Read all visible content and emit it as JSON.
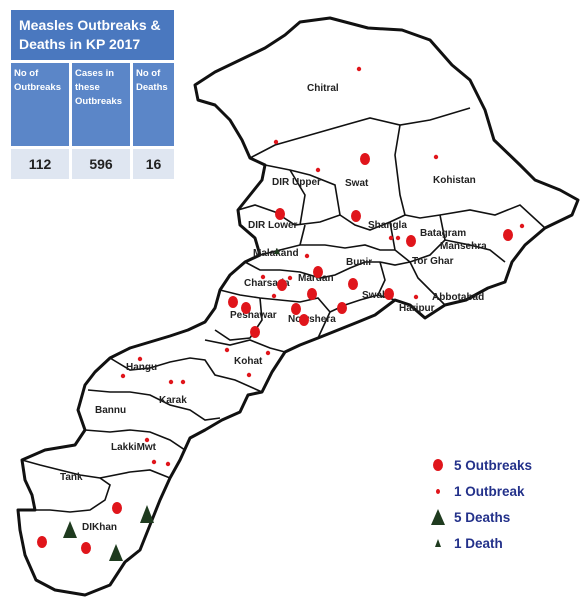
{
  "info_table": {
    "title": "Measles Outbreaks & Deaths in KP 2017",
    "columns": [
      {
        "header": "No of Outbreaks",
        "value": "112"
      },
      {
        "header": "Cases in these Outbreaks",
        "value": "596"
      },
      {
        "header": "No of Deaths",
        "value": "16"
      }
    ]
  },
  "districts": {
    "chitral": "Chitral",
    "dir_upper": "DIR Upper",
    "swat": "Swat",
    "kohistan": "Kohistan",
    "dir_lower": "DIR Lower",
    "shangla": "Shangla",
    "batagram": "Batagram",
    "mansehra": "Mansehra",
    "malakand": "Malakand",
    "buner": "Bunir",
    "tor_ghar": "Tor Ghar",
    "charsadda": "Charsada",
    "mardan": "Mardan",
    "swabi": "Swabi",
    "abbottabad": "Abbotabad",
    "haripur": "Haripur",
    "peshawar": "Peshawar",
    "nowshera": "Nowshera",
    "kohat": "Kohat",
    "hangu": "Hangu",
    "karak": "Karak",
    "bannu": "Bannu",
    "lakki_marwat": "LakkiMwt",
    "tank": "Tank",
    "di_khan": "DIKhan"
  },
  "legend": [
    {
      "symbol": "big-dot",
      "label": "5 Outbreaks"
    },
    {
      "symbol": "small-dot",
      "label": "1 Outbreak"
    },
    {
      "symbol": "big-triangle",
      "label": "5 Deaths"
    },
    {
      "symbol": "small-triangle",
      "label": "1 Death"
    }
  ],
  "colors": {
    "outbreak": "#e0151b",
    "death": "#1f3b1f",
    "table_title_bg": "#4a78bf",
    "table_header_bg": "#5b86c8",
    "table_value_bg": "#dfe6f1",
    "legend_text": "#23318a"
  }
}
